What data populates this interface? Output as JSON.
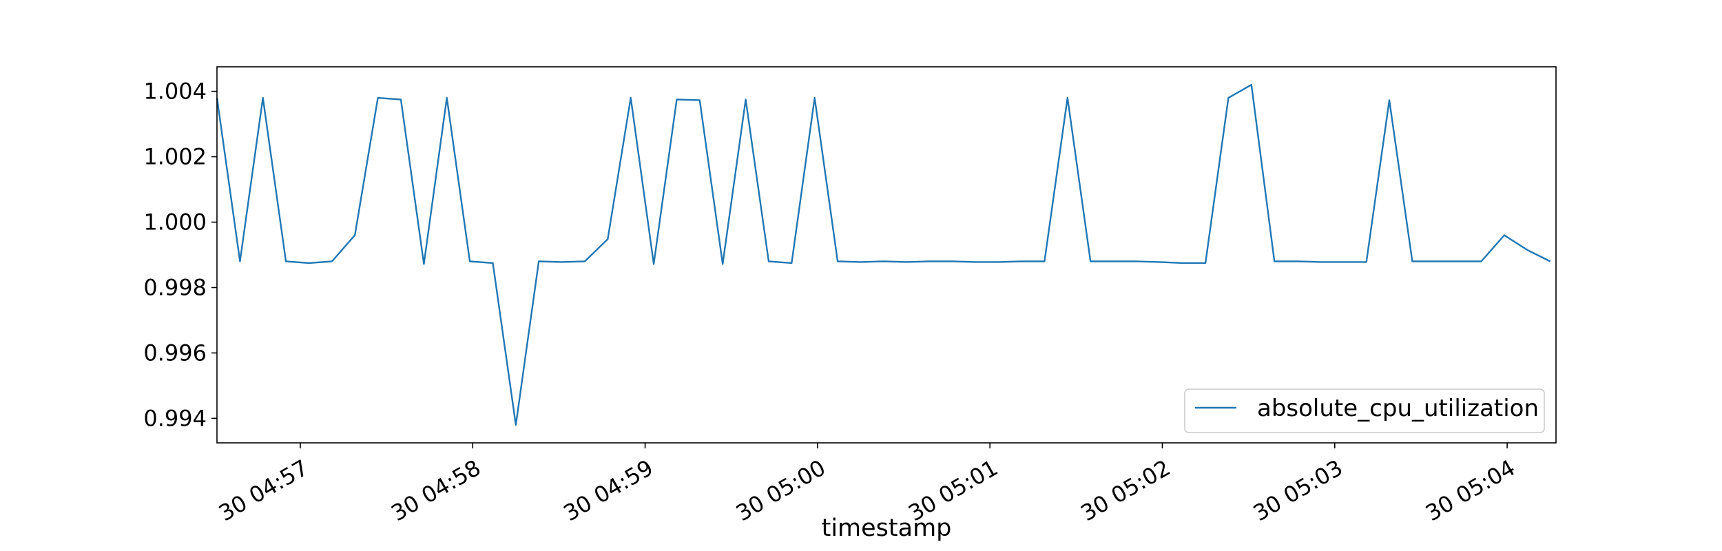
{
  "chart_data": {
    "type": "line",
    "xlabel": "timestamp",
    "ylabel": "",
    "title": "",
    "x_axis": {
      "kind": "time",
      "range_seconds": [
        -29,
        437
      ],
      "tick_seconds": [
        0,
        60,
        120,
        180,
        240,
        300,
        360,
        420
      ],
      "tick_labels": [
        "30 04:57",
        "30 04:58",
        "30 04:59",
        "30 05:00",
        "30 05:01",
        "30 05:02",
        "30 05:03",
        "30 05:04"
      ]
    },
    "y_axis": {
      "range": [
        0.99325,
        1.00475
      ],
      "ticks": [
        0.994,
        0.996,
        0.998,
        1.0,
        1.002,
        1.004
      ],
      "tick_labels": [
        "0.994",
        "0.996",
        "0.998",
        "1.000",
        "1.002",
        "1.004"
      ]
    },
    "legend": {
      "position": "lower-right",
      "entries": [
        "absolute_cpu_utilization"
      ]
    },
    "grid": false,
    "colors": {
      "series": "#1f77b4",
      "axes": "#000000"
    },
    "series": [
      {
        "name": "absolute_cpu_utilization",
        "x": [
          -29,
          -21,
          -13,
          -5,
          3,
          11,
          19,
          27,
          35,
          43,
          51,
          59,
          67,
          75,
          83,
          91,
          99,
          107,
          115,
          123,
          131,
          139,
          147,
          155,
          163,
          171,
          179,
          187,
          195,
          203,
          211,
          219,
          227,
          235,
          243,
          251,
          259,
          267,
          275,
          283,
          291,
          299,
          307,
          315,
          323,
          331,
          339,
          347,
          355,
          363,
          371,
          379,
          387,
          395,
          403,
          411,
          419,
          427,
          435
        ],
        "y": [
          1.0038,
          0.9988,
          1.0038,
          0.9988,
          0.99875,
          0.9988,
          0.9996,
          1.0038,
          1.00375,
          0.99872,
          1.0038,
          0.9988,
          0.99875,
          0.9938,
          0.9988,
          0.99878,
          0.9988,
          0.99948,
          1.0038,
          0.99872,
          1.00375,
          1.00373,
          0.99872,
          1.00375,
          0.9988,
          0.99875,
          1.0038,
          0.9988,
          0.99878,
          0.9988,
          0.99878,
          0.9988,
          0.9988,
          0.99878,
          0.99878,
          0.9988,
          0.9988,
          1.0038,
          0.9988,
          0.9988,
          0.9988,
          0.99878,
          0.99875,
          0.99875,
          1.0038,
          1.0042,
          0.9988,
          0.9988,
          0.99878,
          0.99878,
          0.99878,
          1.00373,
          0.9988,
          0.9988,
          0.9988,
          0.9988,
          0.9996,
          0.99915,
          0.9988
        ]
      }
    ]
  }
}
